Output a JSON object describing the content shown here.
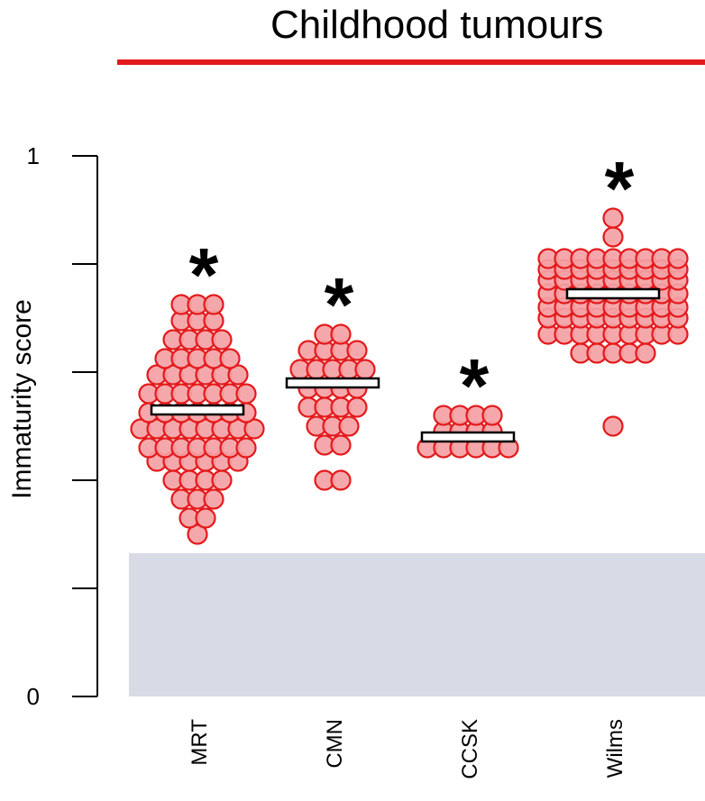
{
  "chart_data": {
    "type": "scatter",
    "title": "Childhood tumours",
    "ylabel": "Immaturity score",
    "ylim": [
      0,
      1
    ],
    "y_tick_labels": [
      "0",
      "1"
    ],
    "categories": [
      "MRT",
      "CMN",
      "CCSK",
      "Wilms"
    ],
    "significance_marker": "*",
    "background_band": {
      "from": 0,
      "to": 0.265
    },
    "colors": {
      "title_bar": "#e31a1c",
      "point_fill": "#f4a1a4",
      "point_stroke": "#e31a1c",
      "band": "#d8dae6",
      "median_fill": "#ffffff",
      "axis": "#000000"
    },
    "groups": [
      {
        "name": "MRT",
        "median": 0.53,
        "significant": true,
        "rows": [
          {
            "y": 0.3,
            "n": 1
          },
          {
            "y": 0.33,
            "n": 2
          },
          {
            "y": 0.365,
            "n": 3
          },
          {
            "y": 0.4,
            "n": 4
          },
          {
            "y": 0.435,
            "n": 6
          },
          {
            "y": 0.46,
            "n": 7
          },
          {
            "y": 0.495,
            "n": 8
          },
          {
            "y": 0.525,
            "n": 7
          },
          {
            "y": 0.56,
            "n": 7
          },
          {
            "y": 0.595,
            "n": 6
          },
          {
            "y": 0.625,
            "n": 5
          },
          {
            "y": 0.66,
            "n": 4
          },
          {
            "y": 0.695,
            "n": 3
          },
          {
            "y": 0.725,
            "n": 3
          }
        ]
      },
      {
        "name": "CMN",
        "median": 0.58,
        "significant": true,
        "rows": [
          {
            "y": 0.4,
            "n": 2
          },
          {
            "y": 0.465,
            "n": 2
          },
          {
            "y": 0.5,
            "n": 3
          },
          {
            "y": 0.535,
            "n": 4
          },
          {
            "y": 0.57,
            "n": 4
          },
          {
            "y": 0.605,
            "n": 5
          },
          {
            "y": 0.64,
            "n": 4
          },
          {
            "y": 0.67,
            "n": 2
          }
        ]
      },
      {
        "name": "CCSK",
        "median": 0.48,
        "significant": true,
        "rows": [
          {
            "y": 0.46,
            "n": 6
          },
          {
            "y": 0.49,
            "n": 4
          },
          {
            "y": 0.52,
            "n": 4
          }
        ]
      },
      {
        "name": "Wilms",
        "median": 0.745,
        "significant": true,
        "rows": [
          {
            "y": 0.5,
            "n": 1
          },
          {
            "y": 0.635,
            "n": 5
          },
          {
            "y": 0.67,
            "n": 9
          },
          {
            "y": 0.7,
            "n": 9
          },
          {
            "y": 0.72,
            "n": 9
          },
          {
            "y": 0.745,
            "n": 9
          },
          {
            "y": 0.77,
            "n": 9
          },
          {
            "y": 0.79,
            "n": 9
          },
          {
            "y": 0.81,
            "n": 9
          },
          {
            "y": 0.85,
            "n": 1
          },
          {
            "y": 0.885,
            "n": 1
          }
        ]
      }
    ]
  }
}
